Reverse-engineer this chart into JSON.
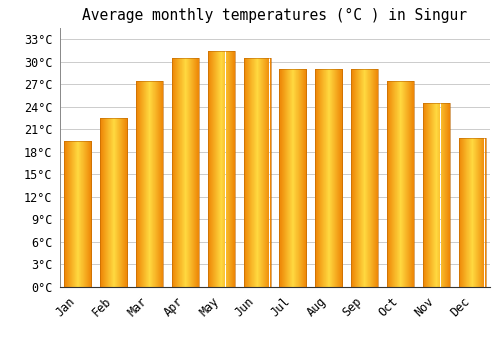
{
  "title": "Average monthly temperatures (°C ) in Singur",
  "months": [
    "Jan",
    "Feb",
    "Mar",
    "Apr",
    "May",
    "Jun",
    "Jul",
    "Aug",
    "Sep",
    "Oct",
    "Nov",
    "Dec"
  ],
  "values": [
    19.5,
    22.5,
    27.5,
    30.5,
    31.5,
    30.5,
    29.0,
    29.0,
    29.0,
    27.5,
    24.5,
    19.8
  ],
  "yticks": [
    0,
    3,
    6,
    9,
    12,
    15,
    18,
    21,
    24,
    27,
    30,
    33
  ],
  "ylim": [
    0,
    34.5
  ],
  "background_color": "#FFFFFF",
  "grid_color": "#CCCCCC",
  "title_fontsize": 10.5,
  "tick_fontsize": 8.5,
  "bar_edge_color": "#E88000",
  "bar_center_color": "#FFD840"
}
